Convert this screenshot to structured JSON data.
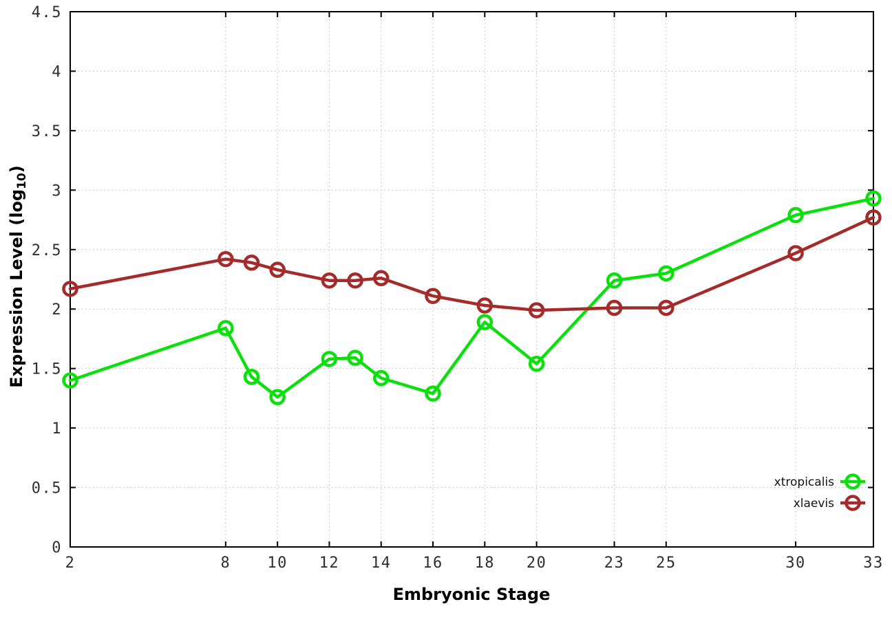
{
  "chart_data": {
    "type": "line",
    "title": "",
    "xlabel": "Embryonic Stage",
    "ylabel": {
      "pre": "Expression Level (log",
      "sub": "10",
      "post": ")"
    },
    "x": [
      2,
      8,
      9,
      10,
      12,
      13,
      14,
      16,
      18,
      20,
      23,
      25,
      30,
      33
    ],
    "series": [
      {
        "name": "xtropicalis",
        "color": "#0ce00c",
        "values": [
          1.4,
          1.84,
          1.43,
          1.26,
          1.58,
          1.59,
          1.42,
          1.29,
          1.89,
          1.54,
          2.24,
          2.3,
          2.79,
          2.93
        ]
      },
      {
        "name": "xlaevis",
        "color": "#a52a2a",
        "values": [
          2.17,
          2.42,
          2.39,
          2.33,
          2.24,
          2.24,
          2.26,
          2.11,
          2.03,
          1.99,
          2.01,
          2.01,
          2.47,
          2.77
        ]
      }
    ],
    "xlim": [
      2,
      33
    ],
    "ylim": [
      0,
      4.5
    ],
    "xticks": {
      "values": [
        2,
        8,
        10,
        12,
        14,
        16,
        18,
        20,
        23,
        25,
        30,
        33
      ],
      "labels": [
        "2",
        "8",
        "10",
        "12",
        "14",
        "16",
        "18",
        "20",
        "23",
        "25",
        "30",
        "33"
      ]
    },
    "yticks": {
      "values": [
        0,
        0.5,
        1,
        1.5,
        2,
        2.5,
        3,
        3.5,
        4,
        4.5
      ],
      "labels": [
        "0",
        "0.5",
        "1",
        "1.5",
        "2",
        "2.5",
        "3",
        "3.5",
        "4",
        "4.5"
      ]
    },
    "grid": true,
    "legend_position": "inside-bottom-right",
    "legend_entries": [
      "xtropicalis",
      "xlaevis"
    ],
    "marker": "open-circle",
    "colors": {
      "border": "#000000",
      "grid": "#b8b8b8",
      "tick_label": "#2e2e2e"
    }
  }
}
